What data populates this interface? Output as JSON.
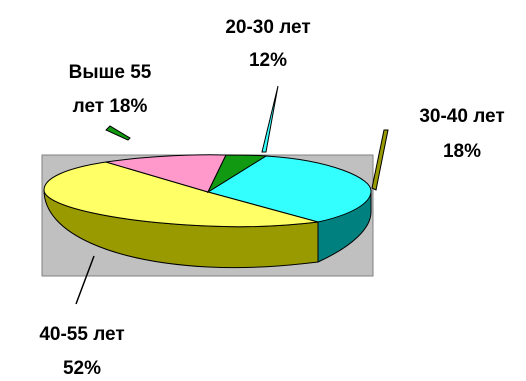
{
  "chart_data": {
    "type": "pie",
    "style": "3d-exploded",
    "title": "",
    "slices": [
      {
        "name": "20-30 лет",
        "value": 12,
        "label": "20-30 лет 12%",
        "label_lines": [
          "20-30 лет",
          "12%"
        ],
        "color": "#33FFFF",
        "side_color": "#00807F"
      },
      {
        "name": "30-40 лет",
        "value": 18,
        "label": "30-40 лет 18%",
        "label_lines": [
          "30-40 лет",
          "18%"
        ],
        "color": "#FFFF33",
        "side_color": "#7F7F00"
      },
      {
        "name": "40-55 лет",
        "value": 52,
        "label": "40-55 лет 52%",
        "label_lines": [
          "40-55 лет",
          "52%"
        ],
        "color": "#FF99CC",
        "side_color": "#7F4C66"
      },
      {
        "name": "Выше 55 лет",
        "value": 18,
        "label": "Выше 55 лет 18%",
        "label_lines": [
          "Выше 55",
          "лет 18%"
        ],
        "color": "#119911",
        "side_color": "#006600"
      }
    ],
    "plot_background": "#C0C0C0",
    "legend": "none"
  }
}
